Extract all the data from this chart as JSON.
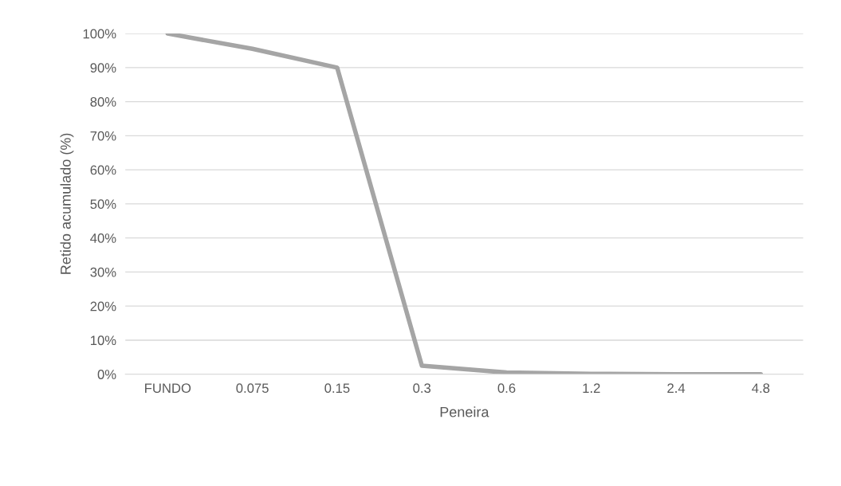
{
  "chart_data": {
    "type": "line",
    "xlabel": "Peneira",
    "ylabel": "Retido acumulado (%)",
    "categories": [
      "FUNDO",
      "0.075",
      "0.15",
      "0.3",
      "0.6",
      "1.2",
      "2.4",
      "4.8"
    ],
    "series": [
      {
        "color": "#a5a5a5",
        "values": [
          100,
          95.5,
          90,
          2.5,
          0.5,
          0.1,
          0,
          0
        ]
      }
    ],
    "ylim": [
      0,
      100
    ],
    "yticks": [
      {
        "value": 0,
        "label": "0%"
      },
      {
        "value": 10,
        "label": "10%"
      },
      {
        "value": 20,
        "label": "20%"
      },
      {
        "value": 30,
        "label": "30%"
      },
      {
        "value": 40,
        "label": "40%"
      },
      {
        "value": 50,
        "label": "50%"
      },
      {
        "value": 60,
        "label": "60%"
      },
      {
        "value": 70,
        "label": "70%"
      },
      {
        "value": 80,
        "label": "80%"
      },
      {
        "value": 90,
        "label": "90%"
      },
      {
        "value": 100,
        "label": "100%"
      }
    ],
    "grid": "y",
    "marker": "none",
    "line_style": "solid"
  }
}
